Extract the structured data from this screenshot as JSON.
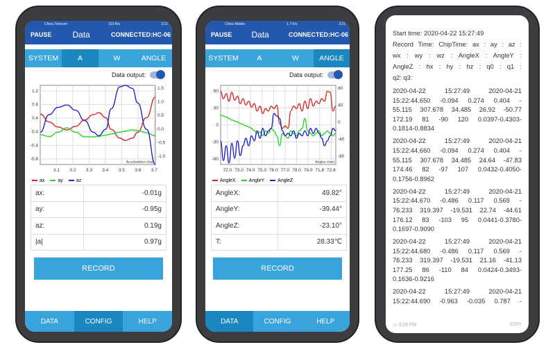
{
  "status": {
    "carrier1": "China Telecom",
    "carrier2": "China Mobile",
    "speed_left": "153 B/s",
    "speed_mid": "1.7 K/s",
    "time_left": "3:22",
    "time_mid": "3:21"
  },
  "header": {
    "pause": "PAUSE",
    "title": "Data",
    "connected": "CONNECTED:HC-06"
  },
  "tabs": [
    "SYSTEM",
    "A",
    "W",
    "ANGLE"
  ],
  "data_output_label": "Data output:",
  "data_output_on": true,
  "nav": [
    "DATA",
    "CONFIG",
    "HELP"
  ],
  "record_label": "RECORD",
  "colors": {
    "header": "#2458ad",
    "tab": "#39a4dc",
    "tab_active": "#1b87c0",
    "red": "#d42a2a",
    "green": "#2ad42a",
    "blue": "#2222c8"
  },
  "accel": {
    "table": [
      [
        "ax:",
        "-0.01g"
      ],
      [
        "ay:",
        "-0.95g"
      ],
      [
        "az:",
        "0.19g"
      ],
      [
        "|a|",
        "0.97g"
      ]
    ]
  },
  "angle": {
    "table": [
      [
        "AngleX:",
        "49.82°"
      ],
      [
        "AngleY:",
        "-39.44°"
      ],
      [
        "AngleZ:",
        "-23.10°"
      ],
      [
        "T:",
        "28.33℃"
      ]
    ]
  },
  "chart_data": [
    {
      "type": "line",
      "title": "Acceleration chart",
      "xlim": [
        3.05,
        3.7
      ],
      "ylim": [
        -1.4,
        1.3
      ],
      "xticks": [
        "3.1",
        "3.2",
        "3.3",
        "3.4",
        "3.5",
        "3.6",
        "3.7"
      ],
      "yticks_left": [
        "1.2",
        "0.8",
        "0.4",
        "0.0",
        "-0.4",
        "-0.8"
      ],
      "yticks_right": [
        "1.5",
        "1.0",
        "0.5",
        "0.0",
        "-0.5",
        "-1.0"
      ],
      "grid": true,
      "legend": "bottom-left",
      "x": [
        3.05,
        3.1,
        3.15,
        3.2,
        3.25,
        3.3,
        3.35,
        3.38,
        3.42,
        3.45,
        3.5,
        3.53,
        3.57,
        3.6,
        3.65,
        3.7
      ],
      "series": [
        {
          "name": "ax",
          "color": "#d42a2a",
          "values": [
            0.32,
            0.05,
            -0.12,
            -0.22,
            -0.1,
            0.12,
            0.3,
            0.37,
            0.2,
            -0.2,
            -0.5,
            -0.58,
            -0.5,
            -0.3,
            0.2,
            0.9
          ]
        },
        {
          "name": "ay",
          "color": "#2ad42a",
          "values": [
            -0.38,
            -0.45,
            -0.3,
            -0.15,
            -0.3,
            -0.45,
            -0.46,
            -0.44,
            -0.4,
            -0.36,
            -0.3,
            -0.26,
            -0.22,
            -0.24,
            -0.32,
            -0.42
          ]
        },
        {
          "name": "az",
          "color": "#2222c8",
          "values": [
            -0.3,
            0.3,
            0.55,
            0.63,
            0.45,
            0.1,
            -0.3,
            -0.42,
            -0.2,
            0.5,
            1.25,
            1.35,
            1.2,
            0.7,
            -0.2,
            -1.4
          ]
        }
      ]
    },
    {
      "type": "line",
      "title": "Angles chart",
      "ylim": [
        -78,
        82
      ],
      "xticks": [
        "72.0",
        "73.0",
        "74.0",
        "75.0",
        "76.0",
        "77.0",
        "78.0",
        "79.0",
        "71.8",
        "72.8"
      ],
      "yticks_left": [
        "60",
        "30",
        "0",
        "-30",
        "-60"
      ],
      "yticks_right": [
        "80",
        "40",
        "0",
        "-40",
        "-80"
      ],
      "grid": true,
      "legend": "bottom-left",
      "series": [
        {
          "name": "AngleX",
          "color": "#d42a2a",
          "values": [
            70,
            55,
            65,
            50,
            68,
            52,
            60,
            45,
            55,
            42,
            50,
            38,
            45,
            30,
            40,
            25,
            35,
            30,
            40,
            35,
            42,
            5,
            -5,
            0,
            -5,
            30,
            40,
            35,
            45,
            30,
            50,
            35,
            55,
            40,
            50,
            45,
            55,
            50,
            70,
            68,
            30,
            40
          ]
        },
        {
          "name": "AngleY",
          "color": "#2ad42a",
          "values": [
            22,
            20,
            18,
            15,
            12,
            10,
            8,
            5,
            3,
            0,
            -2,
            -5,
            -10,
            -15,
            -12,
            -20,
            -10,
            -15,
            -5,
            -10,
            -20,
            -40,
            -15,
            -20,
            -25,
            -10,
            -15,
            -20,
            -10,
            -5,
            15,
            -10,
            -15,
            -20,
            -15,
            -10,
            -20,
            -15,
            -10,
            -15,
            -20,
            -15
          ]
        },
        {
          "name": "AngleZ",
          "color": "#2222c8",
          "values": [
            -30,
            -70,
            -40,
            -75,
            -35,
            -65,
            -30,
            -60,
            -40,
            -25,
            -40,
            -20,
            -30,
            -10,
            -25,
            -5,
            -20,
            -10,
            -5,
            25,
            20,
            15,
            -10,
            -20,
            -15,
            -20,
            -10,
            -25,
            -15,
            -20,
            -10,
            -20,
            -5,
            -15,
            -5,
            -15,
            -25,
            -40,
            -30,
            -20,
            -5,
            -10
          ]
        }
      ]
    }
  ],
  "log": {
    "header_lines": [
      "Start time:  2020-04-22 15:27:49",
      "Record  Time:  ChipTime:  ax :  ay :  az :",
      "wx :  wy :  wz :  AngleX :  AngleY :",
      "AngleZ :  hx :  hy :  hz :  q0 :  q1 :",
      "q2:  q3:"
    ],
    "records": [
      [
        "2020-04-22 15:27:49 2020-04-21",
        "15:22:44.650 -0.094 0.274 0.404 -",
        "55.115 307.678 34.485 26.92 -50.77",
        "172.19 81 -90 120 0.0397-0.4303-",
        "0.1814-0.8834"
      ],
      [
        "2020-04-22 15:27:49 2020-04-21",
        "15:22:44.660 -0.094 0.274 0.404 -",
        "55.115 307.678 34.485 24.64 -47.83",
        "174.46 82 -97 107 0.0432-0.4050-",
        "0.1756-0.8962"
      ],
      [
        "2020-04-22 15:27:49 2020-04-21",
        "15:22:44.670 -0.486 0.117 0.569 -",
        "76.233 319.397 -19.531 22.74 -44.61",
        "176.12 83 -103 95 0.0441-0.3780-",
        "0.1697-0.9090"
      ],
      [
        "2020-04-22 15:27:49 2020-04-21",
        "15:22:44.680 -0.486 0.117 0.569 -",
        "76.233 319.397 -19.531 21.16 -41.13",
        "177.25 86 -110 84 0.0424-0.3493-",
        "0.1636-0.9216"
      ],
      [
        "2020-04-22 15:27:49 2020-04-21",
        "15:22:44.690 -0.963 -0.035 0.787 -"
      ]
    ],
    "footer_time": "3:28 PM",
    "footer_page": "1/20+"
  }
}
